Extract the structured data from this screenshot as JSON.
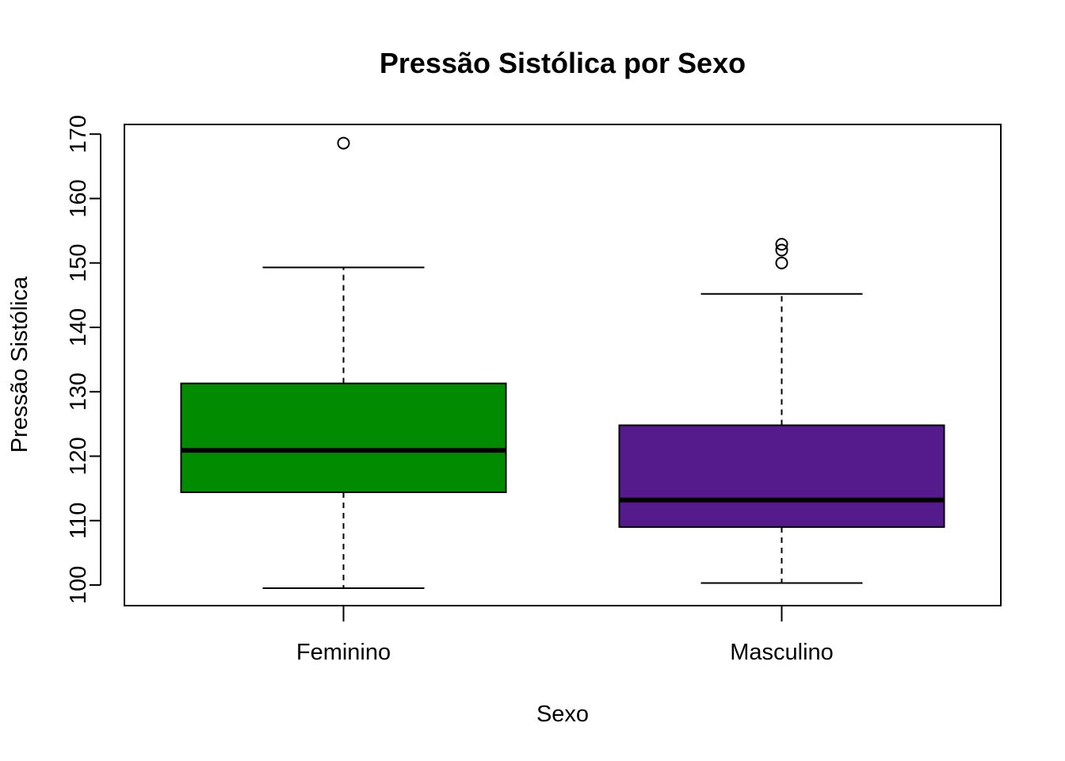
{
  "chart_data": {
    "type": "boxplot",
    "title": "Pressão Sistólica por Sexo",
    "xlabel": "Sexo",
    "ylabel": "Pressão Sistólica",
    "ylim": [
      96.8,
      171.5
    ],
    "yticks": [
      100,
      110,
      120,
      130,
      140,
      150,
      160,
      170
    ],
    "grid": false,
    "legend": "none",
    "boxes": [
      {
        "category": "Feminino",
        "color": "#008B00",
        "whisker_low": 99.5,
        "q1": 114.4,
        "median": 120.9,
        "q3": 131.3,
        "whisker_high": 149.3,
        "outliers": [
          168.6
        ]
      },
      {
        "category": "Masculino",
        "color": "#551A8B",
        "whisker_low": 100.3,
        "q1": 109.0,
        "median": 113.2,
        "q3": 124.8,
        "whisker_high": 145.2,
        "outliers": [
          150.0,
          152.0,
          152.9
        ]
      }
    ]
  }
}
